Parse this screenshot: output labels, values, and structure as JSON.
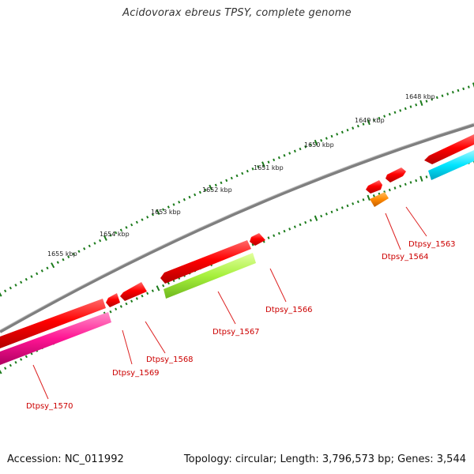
{
  "title": "Acidovorax ebreus TPSY, complete genome",
  "footer": {
    "accession": "Accession: NC_011992",
    "summary": "Topology: circular; Length: 3,796,573 bp; Genes: 3,544"
  },
  "colors": {
    "background": "#ffffff",
    "backbone": "#808080",
    "tick": "#1a7a1a",
    "label_text": "#cc0000",
    "gene_red": "#ff0000",
    "gene_orange": "#ff8800",
    "gene_cyan": "#00e5ff",
    "gene_lime": "#a6f03c",
    "gene_magenta": "#ff1493"
  },
  "ruler": {
    "labels": [
      "1648 kbp",
      "1649 kbp",
      "1650 kbp",
      "1651 kbp",
      "1652 kbp",
      "1653 kbp",
      "1654 kbp",
      "1655 kbp"
    ]
  },
  "gene_labels": [
    "Dtpsy_1563",
    "Dtpsy_1564",
    "Dtpsy_1566",
    "Dtpsy_1567",
    "Dtpsy_1568",
    "Dtpsy_1569",
    "Dtpsy_1570"
  ]
}
